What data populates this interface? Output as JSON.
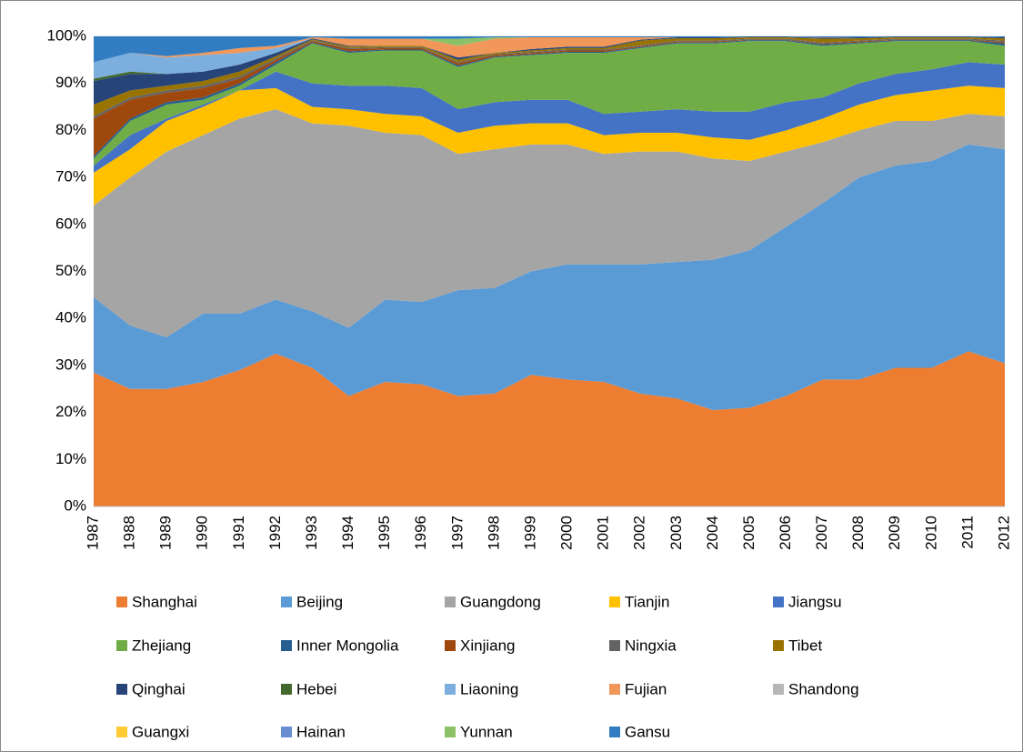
{
  "chart_data": {
    "type": "stacked_area_100",
    "categories": [
      "1987",
      "1988",
      "1989",
      "1990",
      "1991",
      "1992",
      "1993",
      "1994",
      "1995",
      "1996",
      "1997",
      "1998",
      "1999",
      "2000",
      "2001",
      "2002",
      "2003",
      "2004",
      "2005",
      "2006",
      "2007",
      "2008",
      "2009",
      "2010",
      "2011",
      "2012"
    ],
    "ylim": [
      0,
      100
    ],
    "yticks": [
      {
        "value": 0,
        "label": "0%"
      },
      {
        "value": 10,
        "label": "10%"
      },
      {
        "value": 20,
        "label": "20%"
      },
      {
        "value": 30,
        "label": "30%"
      },
      {
        "value": 40,
        "label": "40%"
      },
      {
        "value": 50,
        "label": "50%"
      },
      {
        "value": 60,
        "label": "60%"
      },
      {
        "value": 70,
        "label": "70%"
      },
      {
        "value": 80,
        "label": "80%"
      },
      {
        "value": 90,
        "label": "90%"
      },
      {
        "value": 100,
        "label": "100%"
      }
    ],
    "grid": true,
    "legend": "bottom",
    "series": [
      {
        "name": "Shanghai",
        "color": "#ED7D31",
        "values": [
          28.5,
          25,
          25,
          26.5,
          29,
          32.5,
          29.5,
          23.5,
          26.5,
          26,
          23.5,
          24,
          28,
          27,
          26.5,
          24,
          23,
          20.5,
          21,
          23.5,
          27,
          27,
          29.5,
          29.5,
          33,
          30.5
        ]
      },
      {
        "name": "Beijing",
        "color": "#5B9BD5",
        "values": [
          16,
          13.5,
          11,
          14.5,
          12,
          11.5,
          12,
          14.5,
          17.5,
          17.5,
          22.5,
          22.5,
          22,
          24.5,
          25,
          27.5,
          29,
          32,
          33.5,
          36,
          37.5,
          43,
          43,
          44,
          44,
          45.5
        ]
      },
      {
        "name": "Guangdong",
        "color": "#A5A5A5",
        "values": [
          19.5,
          31.5,
          39.5,
          38,
          41.5,
          40.5,
          40,
          43,
          35.5,
          35.5,
          29,
          29.5,
          27,
          25.5,
          23.5,
          24,
          23.5,
          21.5,
          19,
          16,
          13,
          10,
          9.5,
          8.5,
          6.5,
          7
        ]
      },
      {
        "name": "Tianjin",
        "color": "#FFC000",
        "values": [
          7,
          6,
          6.5,
          6,
          6,
          4.5,
          3.5,
          3.5,
          4,
          4,
          4.5,
          5,
          4.5,
          4.5,
          4,
          4,
          4,
          4.5,
          4.5,
          4.5,
          5,
          5.5,
          5.5,
          6.5,
          6,
          6
        ]
      },
      {
        "name": "Jiangsu",
        "color": "#4472C4",
        "values": [
          1.5,
          3,
          0.5,
          0.5,
          0,
          3.5,
          5,
          5,
          6,
          6,
          5,
          5,
          5,
          5,
          4.5,
          4.5,
          5,
          5.5,
          6,
          6,
          4.5,
          4.5,
          4.5,
          4.5,
          5,
          5
        ]
      },
      {
        "name": "Zhejiang",
        "color": "#70AD47",
        "values": [
          1.5,
          3,
          3,
          1,
          1,
          1.5,
          8.5,
          7,
          7.5,
          8,
          9,
          9.5,
          9.5,
          10,
          13,
          13.5,
          14,
          14.5,
          15,
          13,
          11,
          8.5,
          7,
          6,
          4.5,
          4
        ]
      },
      {
        "name": "Inner Mongolia",
        "color": "#255E91",
        "values": [
          0.5,
          0.5,
          0.5,
          0.5,
          0.5,
          0.5,
          0.2,
          0.3,
          0.2,
          0.2,
          0.3,
          0.2,
          0.2,
          0.2,
          0.2,
          0.2,
          0.2,
          0.2,
          0.2,
          0.2,
          0.3,
          0.2,
          0.2,
          0.2,
          0.2,
          0.5
        ]
      },
      {
        "name": "Xinjiang",
        "color": "#9E480E",
        "values": [
          8,
          4,
          2,
          2,
          1,
          0.5,
          0.3,
          0.5,
          0.3,
          0.3,
          0.5,
          0.3,
          0.3,
          0.3,
          0.3,
          0.2,
          0.2,
          0.2,
          0.1,
          0.1,
          0.2,
          0.2,
          0.1,
          0.1,
          0.1,
          0.3
        ]
      },
      {
        "name": "Ningxia",
        "color": "#636363",
        "values": [
          0.5,
          0.5,
          0.5,
          0.5,
          0.5,
          0.3,
          0.2,
          0.2,
          0.2,
          0.2,
          0.2,
          0.2,
          0.2,
          0.2,
          0.2,
          0.2,
          0.2,
          0.2,
          0.2,
          0.2,
          0.2,
          0.2,
          0.2,
          0.2,
          0.2,
          0.3
        ]
      },
      {
        "name": "Tibet",
        "color": "#997300",
        "values": [
          2.5,
          1.5,
          1,
          1,
          1,
          0.5,
          0.2,
          0.3,
          0.3,
          0.3,
          0.5,
          0.3,
          0.3,
          0.3,
          0.3,
          1,
          0.5,
          0.5,
          0.3,
          0.3,
          0.8,
          0.5,
          0.3,
          0.3,
          0.3,
          0.5
        ]
      },
      {
        "name": "Qinghai",
        "color": "#264478",
        "values": [
          5,
          3.5,
          2.5,
          2,
          1.5,
          0.7,
          0.2,
          0.2,
          0,
          0,
          0.5,
          0,
          0.3,
          0.3,
          0.3,
          0.2,
          0.2,
          0.2,
          0.1,
          0.1,
          0.2,
          0.2,
          0.1,
          0.1,
          0.1,
          0.2
        ]
      },
      {
        "name": "Hebei",
        "color": "#43682B",
        "values": [
          0.5,
          0.5,
          0,
          0,
          0,
          0,
          0,
          0,
          0,
          0,
          0,
          0,
          0,
          0,
          0,
          0,
          0,
          0,
          0,
          0,
          0,
          0,
          0,
          0,
          0,
          0
        ]
      },
      {
        "name": "Liaoning",
        "color": "#7CAFDD",
        "values": [
          3.5,
          4,
          3.5,
          3.5,
          2.5,
          1,
          0,
          0,
          0,
          0,
          0,
          0,
          0,
          0,
          0,
          0,
          0,
          0,
          0,
          0,
          0,
          0,
          0,
          0,
          0,
          0
        ]
      },
      {
        "name": "Fujian",
        "color": "#F1975A",
        "values": [
          0,
          0,
          0.3,
          0.5,
          1,
          0.5,
          0.2,
          1.5,
          1.5,
          1.5,
          2.5,
          3,
          2.5,
          2,
          2,
          0.5,
          0,
          0,
          0,
          0,
          0.1,
          0,
          0,
          0,
          0,
          0
        ]
      },
      {
        "name": "Shandong",
        "color": "#B7B7B7",
        "values": [
          0,
          0,
          0,
          0,
          0,
          0,
          0,
          0,
          0,
          0,
          0,
          0,
          0,
          0,
          0,
          0,
          0,
          0,
          0,
          0,
          0,
          0,
          0,
          0,
          0,
          0
        ]
      },
      {
        "name": "Guangxi",
        "color": "#FFCD33",
        "values": [
          0,
          0,
          0,
          0,
          0,
          0,
          0,
          0,
          0,
          0,
          0,
          0,
          0,
          0,
          0,
          0,
          0,
          0,
          0,
          0,
          0,
          0,
          0,
          0,
          0,
          0
        ]
      },
      {
        "name": "Hainan",
        "color": "#698ED0",
        "values": [
          0,
          0,
          0,
          0,
          0,
          0,
          0,
          0,
          0,
          0,
          0,
          0,
          0,
          0,
          0,
          0,
          0,
          0,
          0,
          0,
          0,
          0,
          0,
          0,
          0,
          0
        ]
      },
      {
        "name": "Yunnan",
        "color": "#8CC168",
        "values": [
          0,
          0,
          0,
          0,
          0,
          0,
          0,
          0,
          0,
          0,
          1.5,
          0.3,
          0,
          0,
          0,
          0,
          0,
          0,
          0,
          0,
          0,
          0,
          0,
          0,
          0,
          0
        ]
      },
      {
        "name": "Gansu",
        "color": "#327DC2",
        "values": [
          5.5,
          3.5,
          4.2,
          3.5,
          2.5,
          2,
          0.2,
          0.5,
          0.5,
          0.5,
          0.5,
          0.2,
          0.2,
          0.2,
          0.2,
          0.2,
          0.2,
          0.2,
          0.1,
          0.1,
          0.2,
          0.2,
          0.1,
          0.1,
          0.1,
          0.2
        ]
      }
    ]
  }
}
